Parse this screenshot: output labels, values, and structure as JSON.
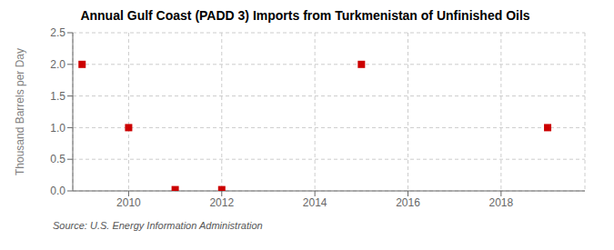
{
  "chart_data": {
    "type": "scatter",
    "title": "Annual Gulf Coast (PADD 3) Imports from Turkmenistan of Unfinished Oils",
    "y_label": "Thousand Barrels per Day",
    "annotations": [
      "Source: U.S. Energy Information Administration"
    ],
    "x": [
      2009,
      2010,
      2011,
      2012,
      2015,
      2019
    ],
    "values": [
      2.0,
      1.0,
      0.02,
      0.02,
      2.0,
      1.0
    ],
    "color": "#cc0000",
    "marker": "square",
    "xlim": [
      2008.8,
      2019.8
    ],
    "xticks": [
      2010,
      2012,
      2014,
      2016,
      2018
    ],
    "ylim": [
      0,
      2.5
    ],
    "yticks": [
      {
        "value": 0,
        "label": "0.0"
      },
      0.5,
      {
        "value": 1,
        "label": "1.0"
      },
      1.5,
      {
        "value": 2,
        "label": "2.0"
      },
      2.5
    ],
    "grid": true
  }
}
